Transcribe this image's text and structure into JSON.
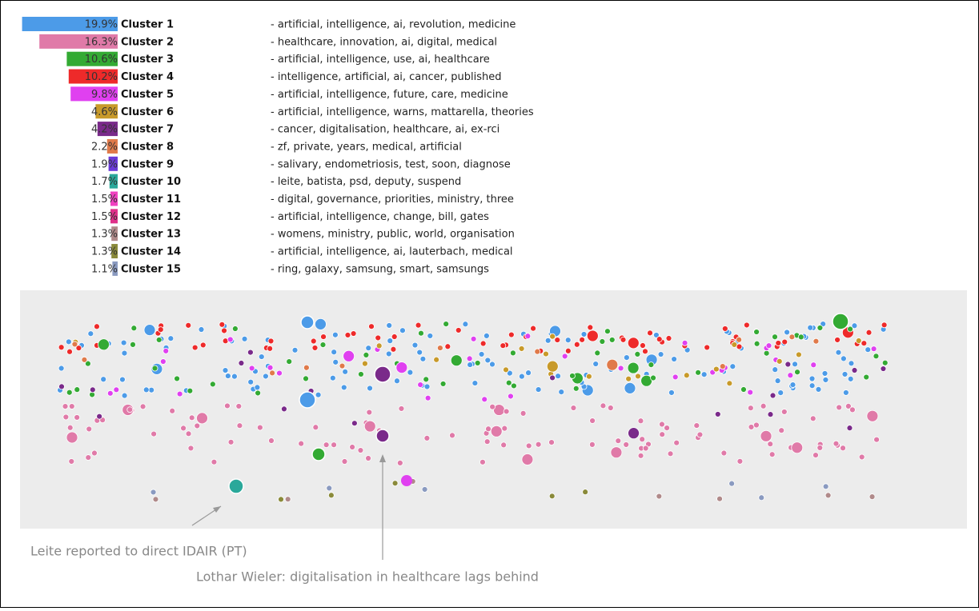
{
  "chart_data": {
    "type": "bar",
    "categories": [
      "Cluster 1",
      "Cluster 2",
      "Cluster 3",
      "Cluster 4",
      "Cluster 5",
      "Cluster 6",
      "Cluster 7",
      "Cluster 8",
      "Cluster 9",
      "Cluster 10",
      "Cluster 11",
      "Cluster 12",
      "Cluster 13",
      "Cluster 14",
      "Cluster 15"
    ],
    "values": [
      19.9,
      16.3,
      10.6,
      10.2,
      9.8,
      4.6,
      4.2,
      2.2,
      1.9,
      1.7,
      1.5,
      1.5,
      1.3,
      1.3,
      1.1
    ],
    "value_labels": [
      "19.9%",
      "16.3%",
      "10.6%",
      "10.2%",
      "9.8%",
      "4.6%",
      "4.2%",
      "2.2%",
      "1.9%",
      "1.7%",
      "1.5%",
      "1.5%",
      "1.3%",
      "1.3%",
      "1.1%"
    ],
    "keywords": [
      "- artificial, intelligence, ai, revolution, medicine",
      "- healthcare, innovation, ai, digital, medical",
      "- artificial, intelligence, use, ai, healthcare",
      "- intelligence, artificial, ai, cancer, published",
      "- artificial, intelligence, future, care, medicine",
      "- artificial, intelligence, warns, mattarella, theories",
      "- cancer, digitalisation, healthcare, ai, ex-rci",
      "- zf, private, years, medical, artificial",
      "- salivary, endometriosis, test, soon, diagnose",
      "- leite, batista, psd, deputy, suspend",
      "- digital, governance, priorities, ministry, three",
      "- artificial, intelligence, change, bill, gates",
      "- womens, ministry, public, world, organisation",
      "- artificial, intelligence, ai, lauterbach, medical",
      "- ring, galaxy, samsung, smart, samsungs"
    ],
    "colors": [
      "#4c9be8",
      "#e07aa8",
      "#33aa33",
      "#ee2a2a",
      "#e040f0",
      "#c89a2a",
      "#7a2a8a",
      "#e07a4a",
      "#6a3ad8",
      "#2aa89a",
      "#f040c0",
      "#e0308a",
      "#b08a8a",
      "#8a8a3a",
      "#8a9ac0"
    ],
    "annotations": [
      "Leite reported to direct IDAIR (PT)",
      "Lothar Wieler: digitalisation in healthcare lags behind"
    ]
  }
}
